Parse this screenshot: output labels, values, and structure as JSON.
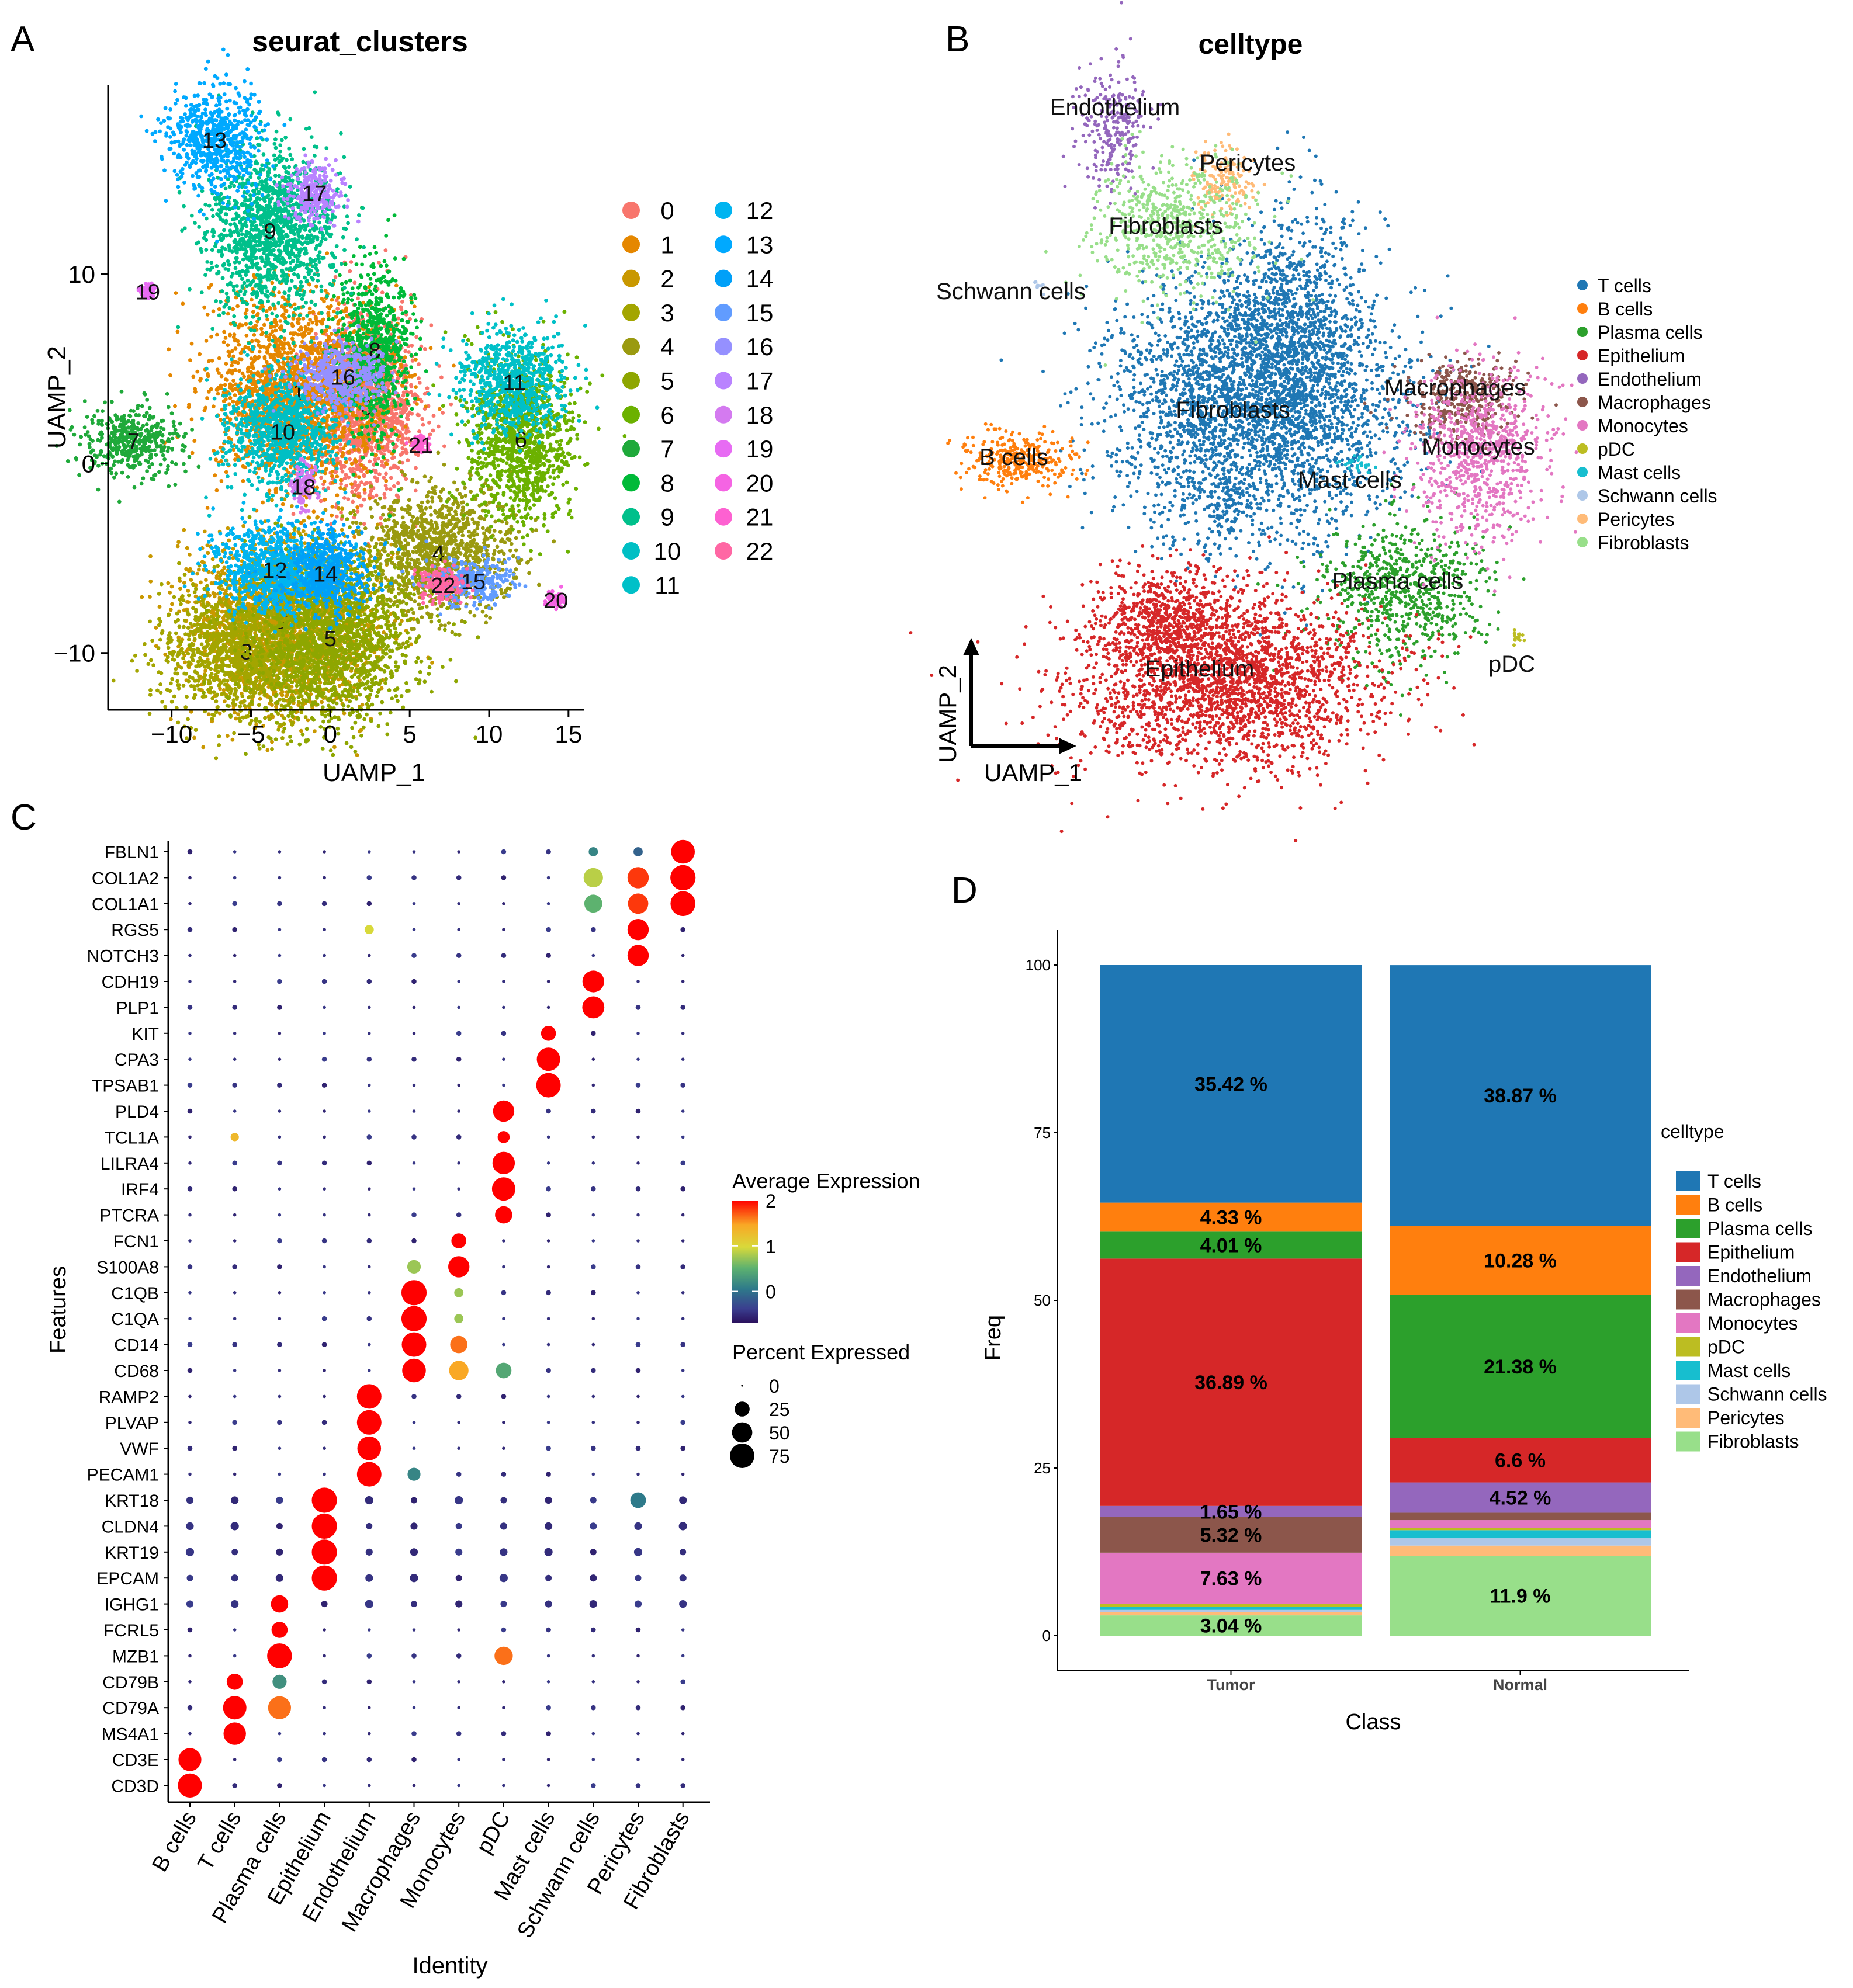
{
  "panels": {
    "A": {
      "letter": "A",
      "chart_data": {
        "type": "scatter",
        "title": "seurat_clusters",
        "xlabel": "UAMP_1",
        "ylabel": "UAMP_2",
        "xlim": [
          -14,
          16
        ],
        "ylim": [
          -13,
          20
        ],
        "xticks": [
          -10,
          -5,
          0,
          5,
          10,
          15
        ],
        "yticks": [
          -10,
          0,
          10
        ],
        "xtick_labels": [
          "−10",
          "−5",
          "0",
          "5",
          "10",
          "15"
        ],
        "ytick_labels": [
          "−10",
          "0",
          "10"
        ],
        "legend": [
          "0",
          "1",
          "2",
          "3",
          "4",
          "5",
          "6",
          "7",
          "8",
          "9",
          "10",
          "11",
          "12",
          "13",
          "14",
          "15",
          "16",
          "17",
          "18",
          "19",
          "20",
          "21",
          "22"
        ],
        "colors": [
          "#F8766D",
          "#E58700",
          "#C99800",
          "#A3A500",
          "#9A9A10",
          "#8EA600",
          "#6BB100",
          "#1FA93A",
          "#00BA38",
          "#00C08B",
          "#00BFC4",
          "#00C0C8",
          "#00B4F0",
          "#00A9FF",
          "#00A0F8",
          "#619CFF",
          "#9590FF",
          "#B983FF",
          "#D47AF0",
          "#E76BF3",
          "#F564E3",
          "#FD61D1",
          "#FF67A4"
        ],
        "clusters": [
          {
            "id": "0",
            "x": 2.3,
            "y": 3.0
          },
          {
            "id": "1",
            "x": -2.0,
            "y": 3.8
          },
          {
            "id": "2",
            "x": -3.0,
            "y": -8.3
          },
          {
            "id": "3",
            "x": -5.3,
            "y": -9.9
          },
          {
            "id": "4",
            "x": 6.8,
            "y": -4.7
          },
          {
            "id": "5",
            "x": 0.0,
            "y": -9.2
          },
          {
            "id": "6",
            "x": 12.0,
            "y": 1.3
          },
          {
            "id": "7",
            "x": -12.4,
            "y": 1.2
          },
          {
            "id": "8",
            "x": 2.8,
            "y": 6.0
          },
          {
            "id": "9",
            "x": -3.8,
            "y": 12.3
          },
          {
            "id": "10",
            "x": -3.0,
            "y": 1.7
          },
          {
            "id": "11",
            "x": 11.6,
            "y": 4.3
          },
          {
            "id": "12",
            "x": -3.5,
            "y": -5.6
          },
          {
            "id": "13",
            "x": -7.3,
            "y": 17.1
          },
          {
            "id": "14",
            "x": -0.3,
            "y": -5.8
          },
          {
            "id": "15",
            "x": 9.0,
            "y": -6.2
          },
          {
            "id": "16",
            "x": 0.8,
            "y": 4.6
          },
          {
            "id": "17",
            "x": -1.0,
            "y": 14.3
          },
          {
            "id": "18",
            "x": -1.7,
            "y": -1.2
          },
          {
            "id": "19",
            "x": -11.5,
            "y": 9.1
          },
          {
            "id": "20",
            "x": 14.2,
            "y": -7.2
          },
          {
            "id": "21",
            "x": 5.7,
            "y": 1.0
          },
          {
            "id": "22",
            "x": 7.1,
            "y": -6.4
          }
        ]
      }
    },
    "B": {
      "letter": "B",
      "chart_data": {
        "type": "scatter",
        "title": "celltype",
        "xlabel": "UAMP_1",
        "ylabel": "UAMP_2",
        "legend": [
          "T cells",
          "B cells",
          "Plasma cells",
          "Epithelium",
          "Endothelium",
          "Macrophages",
          "Monocytes",
          "pDC",
          "Mast cells",
          "Schwann cells",
          "Pericytes",
          "Fibroblasts"
        ],
        "colors": [
          "#1F77B4",
          "#FF7F0E",
          "#2CA02C",
          "#D62728",
          "#9467BD",
          "#8C564B",
          "#E377C2",
          "#BCBD22",
          "#17BECF",
          "#AEC7E8",
          "#FFBB78",
          "#98DF8A"
        ],
        "cluster_labels": [
          "Endothelium",
          "Pericytes",
          "Fibroblasts",
          "Schwann cells",
          "Fibroblasts",
          "Macrophages",
          "B cells",
          "Monocytes",
          "Mast cells",
          "Plasma cells",
          "Epithelium",
          "pDC"
        ]
      }
    },
    "C": {
      "letter": "C",
      "chart_data": {
        "type": "dotplot",
        "xlabel": "Identity",
        "ylabel": "Features",
        "identities": [
          "B cells",
          "T cells",
          "Plasma cells",
          "Epithelium",
          "Endothelium",
          "Macrophages",
          "Monocytes",
          "pDC",
          "Mast cells",
          "Schwann cells",
          "Pericytes",
          "Fibroblasts"
        ],
        "features": [
          "FBLN1",
          "COL1A2",
          "COL1A1",
          "RGS5",
          "NOTCH3",
          "CDH19",
          "PLP1",
          "KIT",
          "CPA3",
          "TPSAB1",
          "PLD4",
          "TCL1A",
          "LILRA4",
          "IRF4",
          "PTCRA",
          "FCN1",
          "S100A8",
          "C1QB",
          "C1QA",
          "CD14",
          "CD68",
          "RAMP2",
          "PLVAP",
          "VWF",
          "PECAM1",
          "KRT18",
          "CLDN4",
          "KRT19",
          "EPCAM",
          "IGHG1",
          "FCRL5",
          "MZB1",
          "CD79B",
          "CD79A",
          "MS4A1",
          "CD3E",
          "CD3D"
        ],
        "color_legend_title": "Average Expression",
        "color_ticks": [
          "2",
          "1",
          "0"
        ],
        "size_legend_title": "Percent Expressed",
        "size_ticks": [
          "0",
          "25",
          "50",
          "75"
        ],
        "highlights": [
          {
            "feature": "FBLN1",
            "identity": "Fibroblasts",
            "expr": 2.0,
            "pct": 70
          },
          {
            "feature": "FBLN1",
            "identity": "Schwann cells",
            "expr": 0.6,
            "pct": 8
          },
          {
            "feature": "FBLN1",
            "identity": "Pericytes",
            "expr": 0.3,
            "pct": 8
          },
          {
            "feature": "COL1A2",
            "identity": "Fibroblasts",
            "expr": 2.0,
            "pct": 80
          },
          {
            "feature": "COL1A2",
            "identity": "Pericytes",
            "expr": 1.9,
            "pct": 55
          },
          {
            "feature": "COL1A2",
            "identity": "Schwann cells",
            "expr": 1.3,
            "pct": 45
          },
          {
            "feature": "COL1A1",
            "identity": "Fibroblasts",
            "expr": 2.0,
            "pct": 78
          },
          {
            "feature": "COL1A1",
            "identity": "Pericytes",
            "expr": 1.9,
            "pct": 50
          },
          {
            "feature": "COL1A1",
            "identity": "Schwann cells",
            "expr": 1.0,
            "pct": 38
          },
          {
            "feature": "RGS5",
            "identity": "Pericytes",
            "expr": 2.0,
            "pct": 55
          },
          {
            "feature": "RGS5",
            "identity": "Endothelium",
            "expr": 1.4,
            "pct": 8
          },
          {
            "feature": "NOTCH3",
            "identity": "Pericytes",
            "expr": 2.0,
            "pct": 55
          },
          {
            "feature": "CDH19",
            "identity": "Schwann cells",
            "expr": 2.0,
            "pct": 58
          },
          {
            "feature": "PLP1",
            "identity": "Schwann cells",
            "expr": 2.0,
            "pct": 60
          },
          {
            "feature": "KIT",
            "identity": "Mast cells",
            "expr": 2.0,
            "pct": 25
          },
          {
            "feature": "CPA3",
            "identity": "Mast cells",
            "expr": 2.0,
            "pct": 68
          },
          {
            "feature": "TPSAB1",
            "identity": "Mast cells",
            "expr": 2.0,
            "pct": 75
          },
          {
            "feature": "PLD4",
            "identity": "pDC",
            "expr": 2.0,
            "pct": 55
          },
          {
            "feature": "TCL1A",
            "identity": "pDC",
            "expr": 2.0,
            "pct": 15
          },
          {
            "feature": "TCL1A",
            "identity": "T cells",
            "expr": 1.6,
            "pct": 6
          },
          {
            "feature": "LILRA4",
            "identity": "pDC",
            "expr": 2.0,
            "pct": 62
          },
          {
            "feature": "IRF4",
            "identity": "pDC",
            "expr": 2.0,
            "pct": 68
          },
          {
            "feature": "PTCRA",
            "identity": "pDC",
            "expr": 2.0,
            "pct": 35
          },
          {
            "feature": "FCN1",
            "identity": "Monocytes",
            "expr": 2.0,
            "pct": 25
          },
          {
            "feature": "S100A8",
            "identity": "Monocytes",
            "expr": 2.0,
            "pct": 55
          },
          {
            "feature": "S100A8",
            "identity": "Macrophages",
            "expr": 1.2,
            "pct": 20
          },
          {
            "feature": "C1QB",
            "identity": "Macrophages",
            "expr": 2.0,
            "pct": 80
          },
          {
            "feature": "C1QB",
            "identity": "Monocytes",
            "expr": 1.2,
            "pct": 8
          },
          {
            "feature": "C1QA",
            "identity": "Macrophages",
            "expr": 2.0,
            "pct": 80
          },
          {
            "feature": "C1QA",
            "identity": "Monocytes",
            "expr": 1.2,
            "pct": 8
          },
          {
            "feature": "CD14",
            "identity": "Macrophages",
            "expr": 2.0,
            "pct": 75
          },
          {
            "feature": "CD14",
            "identity": "Monocytes",
            "expr": 1.8,
            "pct": 35
          },
          {
            "feature": "CD68",
            "identity": "Macrophages",
            "expr": 2.0,
            "pct": 70
          },
          {
            "feature": "CD68",
            "identity": "Monocytes",
            "expr": 1.7,
            "pct": 45
          },
          {
            "feature": "CD68",
            "identity": "pDC",
            "expr": 0.9,
            "pct": 28
          },
          {
            "feature": "RAMP2",
            "identity": "Endothelium",
            "expr": 2.0,
            "pct": 75
          },
          {
            "feature": "PLVAP",
            "identity": "Endothelium",
            "expr": 2.0,
            "pct": 75
          },
          {
            "feature": "VWF",
            "identity": "Endothelium",
            "expr": 2.0,
            "pct": 70
          },
          {
            "feature": "PECAM1",
            "identity": "Endothelium",
            "expr": 2.0,
            "pct": 75
          },
          {
            "feature": "PECAM1",
            "identity": "Macrophages",
            "expr": 0.6,
            "pct": 18
          },
          {
            "feature": "KRT18",
            "identity": "Epithelium",
            "expr": 2.0,
            "pct": 80
          },
          {
            "feature": "KRT18",
            "identity": "Pericytes",
            "expr": 0.5,
            "pct": 28
          },
          {
            "feature": "CLDN4",
            "identity": "Epithelium",
            "expr": 2.0,
            "pct": 80
          },
          {
            "feature": "KRT19",
            "identity": "Epithelium",
            "expr": 2.0,
            "pct": 80
          },
          {
            "feature": "EPCAM",
            "identity": "Epithelium",
            "expr": 2.0,
            "pct": 80
          },
          {
            "feature": "IGHG1",
            "identity": "Plasma cells",
            "expr": 2.0,
            "pct": 35
          },
          {
            "feature": "FCRL5",
            "identity": "Plasma cells",
            "expr": 2.0,
            "pct": 30
          },
          {
            "feature": "MZB1",
            "identity": "Plasma cells",
            "expr": 2.0,
            "pct": 78
          },
          {
            "feature": "MZB1",
            "identity": "pDC",
            "expr": 1.8,
            "pct": 40
          },
          {
            "feature": "CD79B",
            "identity": "T cells",
            "expr": 2.0,
            "pct": 30
          },
          {
            "feature": "CD79B",
            "identity": "Plasma cells",
            "expr": 0.7,
            "pct": 22
          },
          {
            "feature": "CD79A",
            "identity": "T cells",
            "expr": 2.0,
            "pct": 68
          },
          {
            "feature": "CD79A",
            "identity": "Plasma cells",
            "expr": 1.8,
            "pct": 65
          },
          {
            "feature": "MS4A1",
            "identity": "T cells",
            "expr": 2.0,
            "pct": 62
          },
          {
            "feature": "CD3E",
            "identity": "B cells",
            "expr": 2.0,
            "pct": 65
          },
          {
            "feature": "CD3D",
            "identity": "B cells",
            "expr": 2.0,
            "pct": 72
          }
        ]
      }
    },
    "D": {
      "letter": "D",
      "chart_data": {
        "type": "bar",
        "stacked": true,
        "categories": [
          "Tumor",
          "Normal"
        ],
        "xlabel": "Class",
        "ylabel": "Freq",
        "ylim": [
          0,
          100
        ],
        "yticks": [
          "0",
          "25",
          "50",
          "75",
          "100"
        ],
        "legend_title": "celltype",
        "series": [
          {
            "name": "T cells",
            "color": "#1F77B4",
            "values": [
              35.42,
              38.87
            ]
          },
          {
            "name": "B cells",
            "color": "#FF7F0E",
            "values": [
              4.33,
              10.28
            ]
          },
          {
            "name": "Plasma cells",
            "color": "#2CA02C",
            "values": [
              4.01,
              21.38
            ]
          },
          {
            "name": "Epithelium",
            "color": "#D62728",
            "values": [
              36.89,
              6.6
            ]
          },
          {
            "name": "Endothelium",
            "color": "#9467BD",
            "values": [
              1.65,
              4.52
            ]
          },
          {
            "name": "Macrophages",
            "color": "#8C564B",
            "values": [
              5.32,
              1.1
            ]
          },
          {
            "name": "Monocytes",
            "color": "#E377C2",
            "values": [
              7.63,
              1.2
            ]
          },
          {
            "name": "pDC",
            "color": "#BCBD22",
            "values": [
              0.4,
              0.3
            ]
          },
          {
            "name": "Mast cells",
            "color": "#17BECF",
            "values": [
              0.5,
              1.2
            ]
          },
          {
            "name": "Schwann cells",
            "color": "#AEC7E8",
            "values": [
              0.3,
              1.1
            ]
          },
          {
            "name": "Pericytes",
            "color": "#FFBB78",
            "values": [
              0.51,
              1.54
            ]
          },
          {
            "name": "Fibroblasts",
            "color": "#98DF8A",
            "values": [
              3.04,
              11.9
            ]
          }
        ],
        "data_labels": [
          {
            "category": "Tumor",
            "series": "T cells",
            "text": "35.42 %"
          },
          {
            "category": "Tumor",
            "series": "B cells",
            "text": "4.33 %"
          },
          {
            "category": "Tumor",
            "series": "Plasma cells",
            "text": "4.01 %"
          },
          {
            "category": "Tumor",
            "series": "Epithelium",
            "text": "36.89 %"
          },
          {
            "category": "Tumor",
            "series": "Endothelium",
            "text": "1.65 %"
          },
          {
            "category": "Tumor",
            "series": "Macrophages",
            "text": "5.32 %"
          },
          {
            "category": "Tumor",
            "series": "Monocytes",
            "text": "7.63 %"
          },
          {
            "category": "Tumor",
            "series": "Fibroblasts",
            "text": "3.04 %"
          },
          {
            "category": "Normal",
            "series": "T cells",
            "text": "38.87 %"
          },
          {
            "category": "Normal",
            "series": "B cells",
            "text": "10.28 %"
          },
          {
            "category": "Normal",
            "series": "Plasma cells",
            "text": "21.38 %"
          },
          {
            "category": "Normal",
            "series": "Epithelium",
            "text": "6.6 %"
          },
          {
            "category": "Normal",
            "series": "Endothelium",
            "text": "4.52 %"
          },
          {
            "category": "Normal",
            "series": "Fibroblasts",
            "text": "11.9 %"
          }
        ]
      }
    }
  }
}
